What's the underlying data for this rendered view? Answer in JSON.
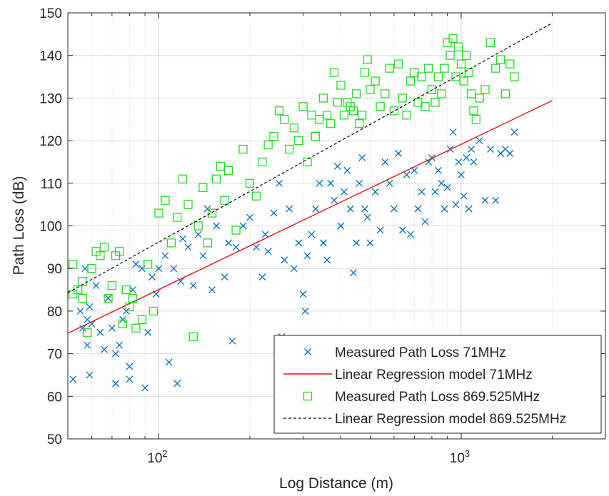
{
  "chart_data": {
    "type": "scatter",
    "xscale": "log",
    "xlim": [
      50,
      3000
    ],
    "ylim": [
      50,
      150
    ],
    "grid": true,
    "xlabel": "Log Distance (m)",
    "ylabel": "Path Loss (dB)",
    "x_ticks": [
      100,
      1000
    ],
    "x_tick_labels": [
      {
        "base": "10",
        "exp": "2"
      },
      {
        "base": "10",
        "exp": "3"
      }
    ],
    "y_ticks": [
      50,
      60,
      70,
      80,
      90,
      100,
      110,
      120,
      130,
      140,
      150
    ],
    "y_tick_labels": [
      "50",
      "60",
      "70",
      "80",
      "90",
      "100",
      "110",
      "120",
      "130",
      "140",
      "150"
    ],
    "legend_position": "bottom-right",
    "colors": {
      "series_71": "#0072BD",
      "regression_71": "#E6141A",
      "series_869": "#22DD22",
      "regression_869": "#000000"
    },
    "series": [
      {
        "name": "Measured Path Loss 71MHz",
        "kind": "scatter",
        "marker": "x",
        "points": [
          [
            52,
            64
          ],
          [
            55,
            80
          ],
          [
            56,
            76
          ],
          [
            57,
            90
          ],
          [
            58,
            78
          ],
          [
            58,
            72
          ],
          [
            59,
            65
          ],
          [
            59,
            81
          ],
          [
            60,
            77
          ],
          [
            62,
            86
          ],
          [
            64,
            75
          ],
          [
            66,
            71
          ],
          [
            68,
            83
          ],
          [
            70,
            76
          ],
          [
            72,
            63
          ],
          [
            72,
            70
          ],
          [
            74,
            72
          ],
          [
            76,
            78
          ],
          [
            78,
            80
          ],
          [
            80,
            67
          ],
          [
            80,
            64
          ],
          [
            82,
            85
          ],
          [
            84,
            91
          ],
          [
            88,
            90
          ],
          [
            90,
            62
          ],
          [
            92,
            75
          ],
          [
            95,
            88
          ],
          [
            98,
            84
          ],
          [
            100,
            90
          ],
          [
            105,
            93
          ],
          [
            108,
            68
          ],
          [
            112,
            90
          ],
          [
            115,
            63
          ],
          [
            118,
            87
          ],
          [
            120,
            97
          ],
          [
            125,
            95
          ],
          [
            130,
            86
          ],
          [
            135,
            98
          ],
          [
            140,
            93
          ],
          [
            145,
            104
          ],
          [
            150,
            85
          ],
          [
            155,
            100
          ],
          [
            165,
            88
          ],
          [
            170,
            96
          ],
          [
            175,
            73
          ],
          [
            180,
            95
          ],
          [
            190,
            100
          ],
          [
            200,
            102
          ],
          [
            210,
            95
          ],
          [
            220,
            88
          ],
          [
            225,
            98
          ],
          [
            230,
            94
          ],
          [
            240,
            103
          ],
          [
            250,
            110
          ],
          [
            255,
            74
          ],
          [
            260,
            92
          ],
          [
            270,
            104
          ],
          [
            280,
            90
          ],
          [
            290,
            96
          ],
          [
            300,
            84
          ],
          [
            305,
            80
          ],
          [
            310,
            93
          ],
          [
            320,
            98
          ],
          [
            330,
            104
          ],
          [
            340,
            110
          ],
          [
            350,
            96
          ],
          [
            360,
            92
          ],
          [
            370,
            110
          ],
          [
            380,
            106
          ],
          [
            390,
            114
          ],
          [
            400,
            100
          ],
          [
            410,
            108
          ],
          [
            420,
            113
          ],
          [
            430,
            104
          ],
          [
            440,
            89
          ],
          [
            450,
            96
          ],
          [
            460,
            110
          ],
          [
            470,
            116
          ],
          [
            480,
            104
          ],
          [
            490,
            102
          ],
          [
            500,
            96
          ],
          [
            520,
            108
          ],
          [
            540,
            99
          ],
          [
            560,
            115
          ],
          [
            580,
            110
          ],
          [
            600,
            104
          ],
          [
            620,
            117
          ],
          [
            640,
            99
          ],
          [
            660,
            112
          ],
          [
            680,
            98
          ],
          [
            700,
            113
          ],
          [
            720,
            104
          ],
          [
            740,
            108
          ],
          [
            760,
            101
          ],
          [
            780,
            115
          ],
          [
            800,
            116
          ],
          [
            820,
            108
          ],
          [
            840,
            113
          ],
          [
            860,
            110
          ],
          [
            880,
            104
          ],
          [
            900,
            109
          ],
          [
            920,
            118
          ],
          [
            940,
            122
          ],
          [
            960,
            105
          ],
          [
            980,
            115
          ],
          [
            1000,
            112
          ],
          [
            1020,
            107
          ],
          [
            1040,
            116
          ],
          [
            1060,
            104
          ],
          [
            1080,
            118
          ],
          [
            1100,
            115
          ],
          [
            1150,
            120
          ],
          [
            1200,
            106
          ],
          [
            1250,
            118
          ],
          [
            1300,
            106
          ],
          [
            1350,
            117
          ],
          [
            1400,
            118
          ],
          [
            1450,
            117
          ],
          [
            1500,
            122
          ]
        ]
      },
      {
        "name": "Linear Regression model 71MHz",
        "kind": "line",
        "style": "solid",
        "points": [
          [
            50,
            74.8
          ],
          [
            2000,
            129.4
          ]
        ]
      },
      {
        "name": "Measured Path Loss 869.525MHz",
        "kind": "scatter",
        "marker": "square",
        "points": [
          [
            52,
            91
          ],
          [
            52,
            84
          ],
          [
            54,
            85
          ],
          [
            56,
            87
          ],
          [
            56,
            83
          ],
          [
            58,
            75
          ],
          [
            60,
            90
          ],
          [
            62,
            94
          ],
          [
            64,
            93
          ],
          [
            66,
            95
          ],
          [
            68,
            83
          ],
          [
            70,
            86
          ],
          [
            72,
            93
          ],
          [
            74,
            94
          ],
          [
            76,
            77
          ],
          [
            78,
            85
          ],
          [
            80,
            81
          ],
          [
            82,
            83
          ],
          [
            84,
            76
          ],
          [
            88,
            78
          ],
          [
            92,
            91
          ],
          [
            96,
            80
          ],
          [
            100,
            103
          ],
          [
            105,
            106
          ],
          [
            110,
            96
          ],
          [
            115,
            102
          ],
          [
            120,
            111
          ],
          [
            125,
            105
          ],
          [
            130,
            74
          ],
          [
            135,
            100
          ],
          [
            140,
            109
          ],
          [
            145,
            96
          ],
          [
            150,
            103
          ],
          [
            155,
            111
          ],
          [
            160,
            114
          ],
          [
            165,
            106
          ],
          [
            170,
            113
          ],
          [
            180,
            99
          ],
          [
            190,
            118
          ],
          [
            200,
            110
          ],
          [
            210,
            107
          ],
          [
            220,
            115
          ],
          [
            230,
            119
          ],
          [
            240,
            121
          ],
          [
            250,
            127
          ],
          [
            260,
            125
          ],
          [
            270,
            118
          ],
          [
            280,
            123
          ],
          [
            290,
            120
          ],
          [
            300,
            128
          ],
          [
            310,
            115
          ],
          [
            320,
            126
          ],
          [
            330,
            121
          ],
          [
            340,
            125
          ],
          [
            350,
            130
          ],
          [
            360,
            126
          ],
          [
            370,
            124
          ],
          [
            380,
            136
          ],
          [
            390,
            129
          ],
          [
            400,
            133
          ],
          [
            410,
            126
          ],
          [
            420,
            129
          ],
          [
            430,
            128
          ],
          [
            440,
            127
          ],
          [
            450,
            131
          ],
          [
            460,
            124
          ],
          [
            470,
            126
          ],
          [
            480,
            136
          ],
          [
            490,
            139
          ],
          [
            500,
            132
          ],
          [
            520,
            134
          ],
          [
            540,
            128
          ],
          [
            560,
            131
          ],
          [
            580,
            137
          ],
          [
            600,
            127
          ],
          [
            620,
            138
          ],
          [
            640,
            130
          ],
          [
            660,
            126
          ],
          [
            680,
            134
          ],
          [
            700,
            136
          ],
          [
            720,
            129
          ],
          [
            740,
            135
          ],
          [
            760,
            128
          ],
          [
            780,
            137
          ],
          [
            800,
            132
          ],
          [
            820,
            129
          ],
          [
            840,
            135
          ],
          [
            860,
            131
          ],
          [
            880,
            137
          ],
          [
            900,
            143
          ],
          [
            920,
            140
          ],
          [
            940,
            144
          ],
          [
            960,
            135
          ],
          [
            980,
            142
          ],
          [
            1000,
            138
          ],
          [
            1020,
            134
          ],
          [
            1040,
            140
          ],
          [
            1060,
            136
          ],
          [
            1080,
            131
          ],
          [
            1100,
            127
          ],
          [
            1120,
            125
          ],
          [
            1150,
            130
          ],
          [
            1200,
            132
          ],
          [
            1250,
            143
          ],
          [
            1300,
            137
          ],
          [
            1350,
            139
          ],
          [
            1400,
            131
          ],
          [
            1450,
            138
          ],
          [
            1500,
            135
          ]
        ]
      },
      {
        "name": "Linear Regression model 869.525MHz",
        "kind": "line",
        "style": "dashed",
        "points": [
          [
            50,
            84.3
          ],
          [
            2000,
            147.6
          ]
        ]
      }
    ]
  }
}
